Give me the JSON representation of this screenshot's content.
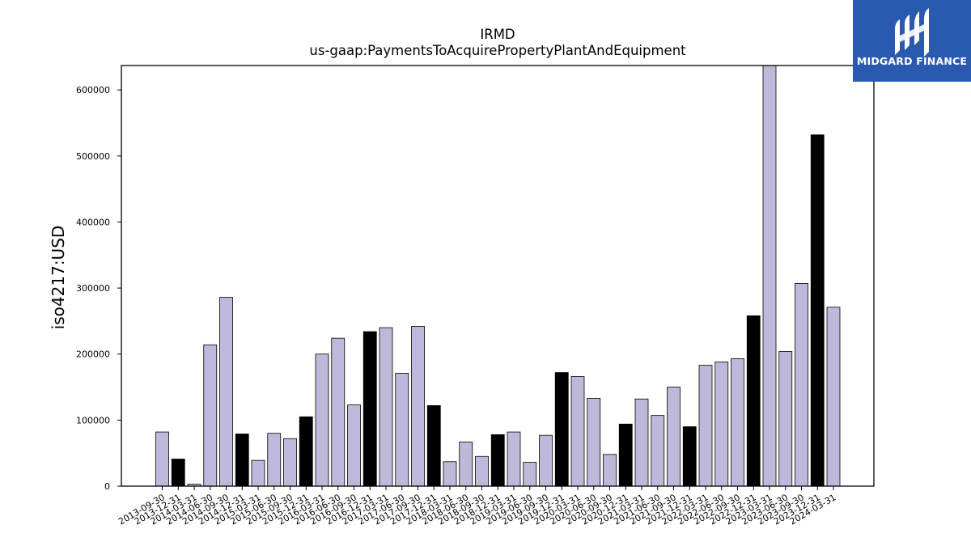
{
  "chart_data": {
    "type": "bar",
    "title": "IRMD",
    "subtitle": "us-gaap:PaymentsToAcquirePropertyPlantAndEquipment",
    "xlabel": "",
    "ylabel": "iso4217:USD",
    "ylim": [
      0,
      637000
    ],
    "yticks": [
      0,
      100000,
      200000,
      300000,
      400000,
      500000,
      600000
    ],
    "grid": false,
    "colors": {
      "default": "#bcb9da",
      "highlight": "#000000",
      "edge": "#000000"
    },
    "categories": [
      "2013-09-30",
      "2013-12-31",
      "2014-03-31",
      "2014-06-30",
      "2014-09-30",
      "2014-12-31",
      "2015-03-31",
      "2015-06-30",
      "2015-09-30",
      "2015-12-31",
      "2016-03-31",
      "2016-06-30",
      "2016-09-30",
      "2016-12-31",
      "2017-03-31",
      "2017-06-30",
      "2017-09-30",
      "2017-12-31",
      "2018-03-31",
      "2018-06-30",
      "2018-09-30",
      "2018-12-31",
      "2019-03-31",
      "2019-06-30",
      "2019-09-30",
      "2019-12-31",
      "2020-03-31",
      "2020-06-30",
      "2020-09-30",
      "2020-12-31",
      "2021-03-31",
      "2021-06-30",
      "2021-09-30",
      "2021-12-31",
      "2022-03-31",
      "2022-06-30",
      "2022-09-30",
      "2022-12-31",
      "2023-03-31",
      "2023-06-30",
      "2023-09-30",
      "2023-12-31",
      "2024-03-31"
    ],
    "values": [
      82000,
      41000,
      3000,
      214000,
      286000,
      79000,
      39000,
      80000,
      72000,
      105000,
      200000,
      224000,
      123000,
      234000,
      240000,
      171000,
      242000,
      122000,
      37000,
      67000,
      45000,
      78000,
      82000,
      36000,
      77000,
      172000,
      166000,
      133000,
      48000,
      94000,
      132000,
      107000,
      150000,
      90000,
      183000,
      188000,
      193000,
      258000,
      640000,
      204000,
      307000,
      532000,
      271000
    ],
    "highlight": [
      false,
      true,
      false,
      false,
      false,
      true,
      false,
      false,
      false,
      true,
      false,
      false,
      false,
      true,
      false,
      false,
      false,
      true,
      false,
      false,
      false,
      true,
      false,
      false,
      false,
      true,
      false,
      false,
      false,
      true,
      false,
      false,
      false,
      true,
      false,
      false,
      false,
      true,
      false,
      false,
      false,
      true,
      false
    ]
  },
  "logo": {
    "name": "midgard-logo-icon",
    "text": "MIDGARD FINANCE"
  }
}
